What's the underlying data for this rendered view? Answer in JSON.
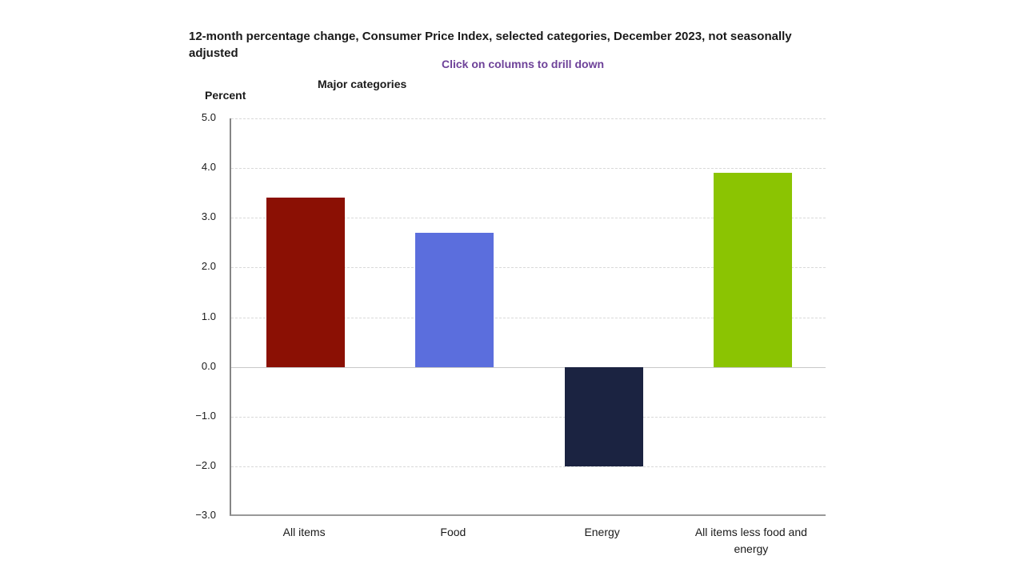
{
  "header": {
    "title": "12-month percentage change, Consumer Price Index, selected categories, December 2023, not seasonally adjusted",
    "subtitle": "Click on columns to drill down",
    "group_label": "Major categories",
    "y_axis_title": "Percent"
  },
  "colors": {
    "subtitle_purple": "#6e4299",
    "axis_line": "#858585",
    "gridline": "#d9d9d9",
    "zero_line": "#c8c8c8",
    "text": "#1a1a1a"
  },
  "chart_data": {
    "type": "bar",
    "title": "12-month percentage change, Consumer Price Index, selected categories, December 2023, not seasonally adjusted",
    "subtitle": "Click on columns to drill down",
    "group_label": "Major categories",
    "categories": [
      "All items",
      "Food",
      "Energy",
      "All items less food and energy"
    ],
    "values": [
      3.4,
      2.7,
      -2.0,
      3.9
    ],
    "bar_colors": [
      "#8b1004",
      "#5b6edd",
      "#1b2341",
      "#8bc402"
    ],
    "xlabel": "",
    "ylabel": "Percent",
    "ylim": [
      -3.0,
      5.0
    ],
    "yticks": [
      5.0,
      4.0,
      3.0,
      2.0,
      1.0,
      0.0,
      -1.0,
      -2.0,
      -3.0
    ],
    "grid": "horizontal-dashed",
    "legend": "none",
    "interaction": "columns clickable to drill down"
  }
}
